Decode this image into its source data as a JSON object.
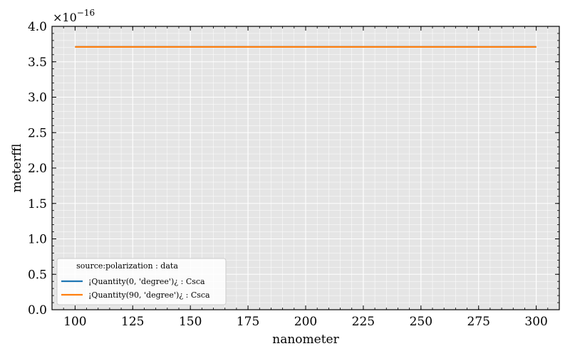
{
  "chart_data": {
    "type": "line",
    "xlabel": "nanometer",
    "ylabel": "meterffl",
    "x_ticks": [
      100,
      125,
      150,
      175,
      200,
      225,
      250,
      275,
      300
    ],
    "y_ticks": [
      0.0,
      0.5,
      1.0,
      1.5,
      2.0,
      2.5,
      3.0,
      3.5,
      4.0
    ],
    "x_tick_labels": [
      "100",
      "125",
      "150",
      "175",
      "200",
      "225",
      "250",
      "275",
      "300"
    ],
    "y_tick_labels": [
      "0.0",
      "0.5",
      "1.0",
      "1.5",
      "2.0",
      "2.5",
      "3.0",
      "3.5",
      "4.0"
    ],
    "xlim": [
      90,
      310
    ],
    "ylim": [
      0,
      4.0
    ],
    "y_offset_label": "×10",
    "y_offset_exponent": "−16",
    "grid": true,
    "background": "#e5e5e5",
    "legend": {
      "title": "source:polarization : data",
      "placement": "lower-left"
    },
    "series": [
      {
        "name": "¡Quantity(0, 'degree')¿ : Csca",
        "color": "#1f77b4",
        "x": [
          100,
          300
        ],
        "y": [
          3.71,
          3.71
        ]
      },
      {
        "name": "¡Quantity(90, 'degree')¿ : Csca",
        "color": "#ff7f0e",
        "x": [
          100,
          300
        ],
        "y": [
          3.71,
          3.71
        ]
      }
    ]
  }
}
